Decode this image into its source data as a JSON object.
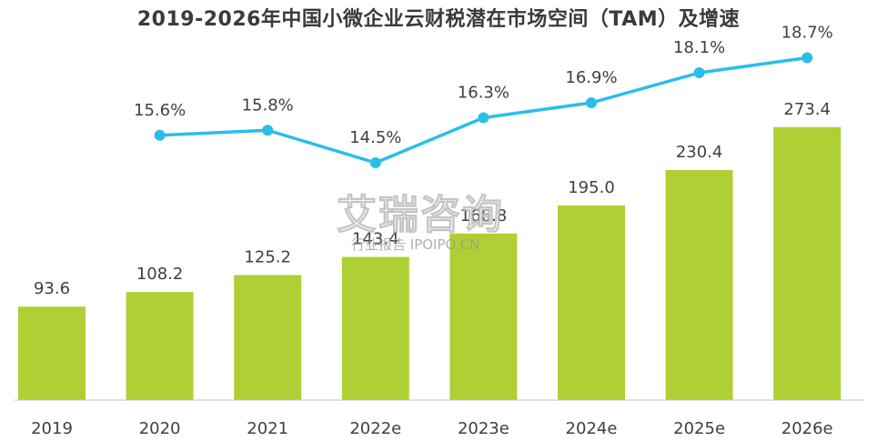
{
  "chart_data": {
    "type": "bar+line",
    "title": "2019-2026年中国小微企业云财税潜在市场空间（TAM）及增速",
    "categories": [
      "2019",
      "2020",
      "2021",
      "2022e",
      "2023e",
      "2024e",
      "2025e",
      "2026e"
    ],
    "series": [
      {
        "type": "bar",
        "values": [
          93.6,
          108.2,
          125.2,
          143.4,
          166.8,
          195.0,
          230.4,
          273.4
        ],
        "labels": [
          "93.6",
          "108.2",
          "125.2",
          "143.4",
          "166.8",
          "195.0",
          "230.4",
          "273.4"
        ],
        "color": "#b0cf34"
      },
      {
        "type": "line",
        "values": [
          null,
          15.6,
          15.8,
          14.5,
          16.3,
          16.9,
          18.1,
          18.7
        ],
        "labels": [
          null,
          "15.6%",
          "15.8%",
          "14.5%",
          "16.3%",
          "16.9%",
          "18.1%",
          "18.7%"
        ],
        "color": "#2bbdea"
      }
    ],
    "bar_ylim": [
      0,
      300
    ],
    "line_ylim": [
      0,
      20
    ],
    "grid": false,
    "legend": "none"
  },
  "watermark": {
    "main": "艾瑞咨询",
    "sub": "行业报告 IPOIPO.CN"
  }
}
